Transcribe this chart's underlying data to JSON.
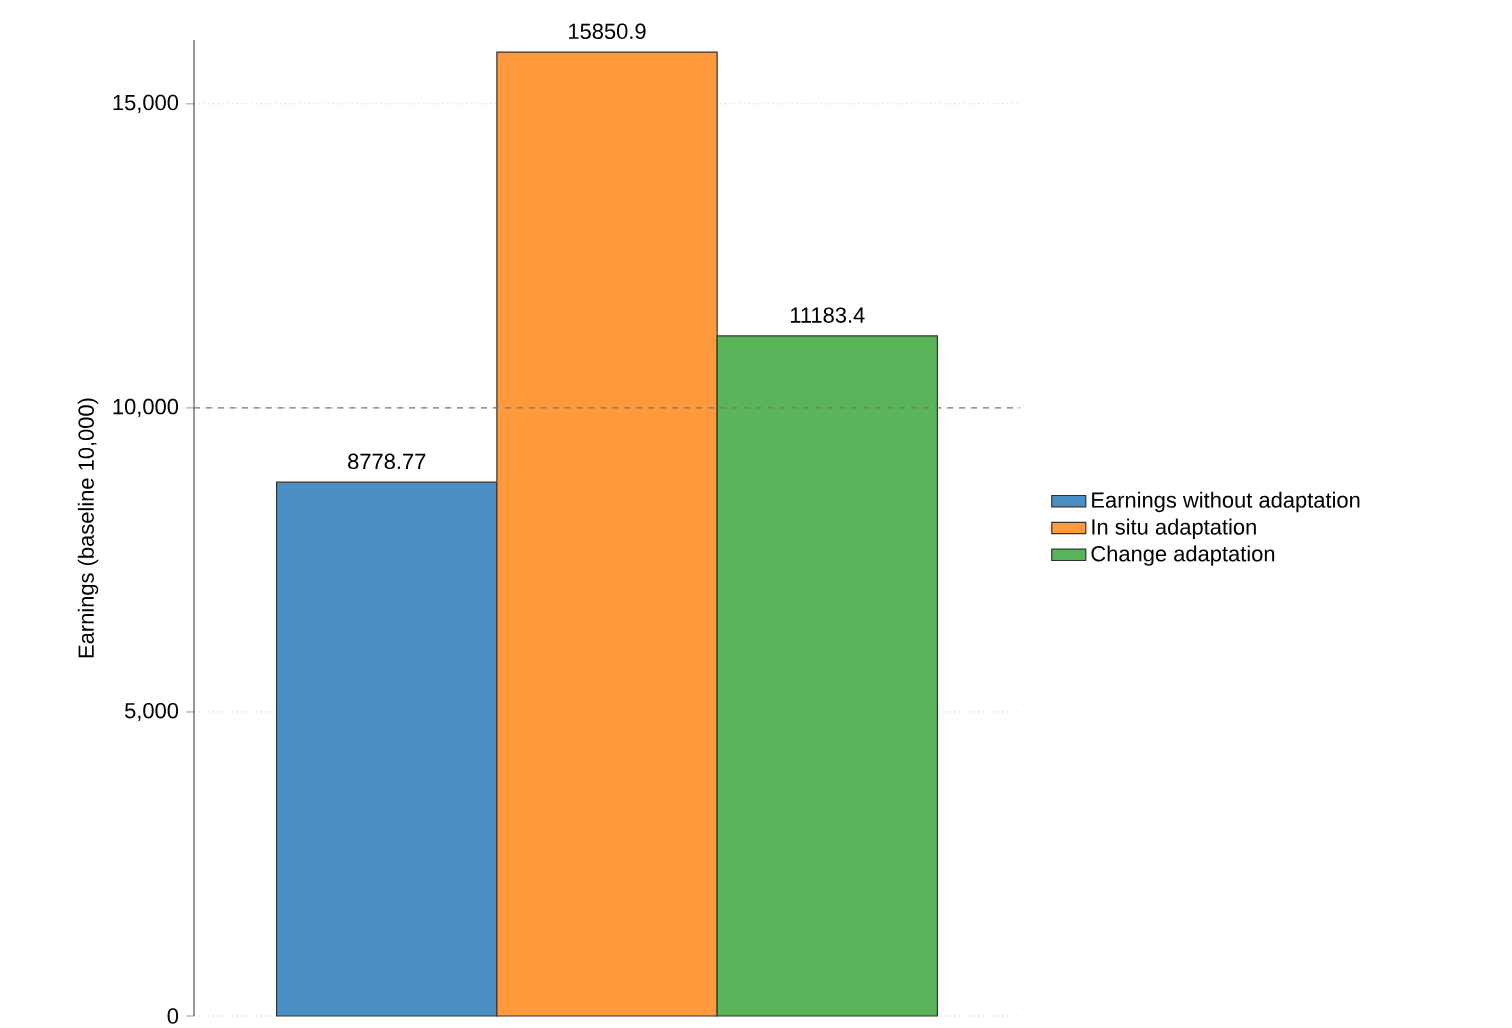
{
  "chart_data": {
    "type": "bar",
    "ylabel": "Earnings (baseline 10,000)",
    "categories": [
      null
    ],
    "series": [
      {
        "name": "Earnings without adaptation",
        "color": "#4a90c4",
        "values": [
          8778.77
        ]
      },
      {
        "name": "In situ adaptation",
        "color": "#ff9a3c",
        "values": [
          15850.9
        ]
      },
      {
        "name": "Change adaptation",
        "color": "#5ab55a",
        "values": [
          11183.4
        ]
      }
    ],
    "ylim": [
      0,
      16050
    ],
    "yticks": [
      0,
      {
        "value": 5000,
        "label": "5,000"
      },
      {
        "value": 10000,
        "label": "10,000"
      },
      {
        "value": 15000,
        "label": "15,000"
      }
    ],
    "ref_lines": [
      {
        "axis": "y",
        "value": 10000,
        "line_style": "dashed",
        "color": "#777777"
      }
    ],
    "grid": "y",
    "legend": "right",
    "data_labels": true,
    "tick_labels": "y"
  }
}
